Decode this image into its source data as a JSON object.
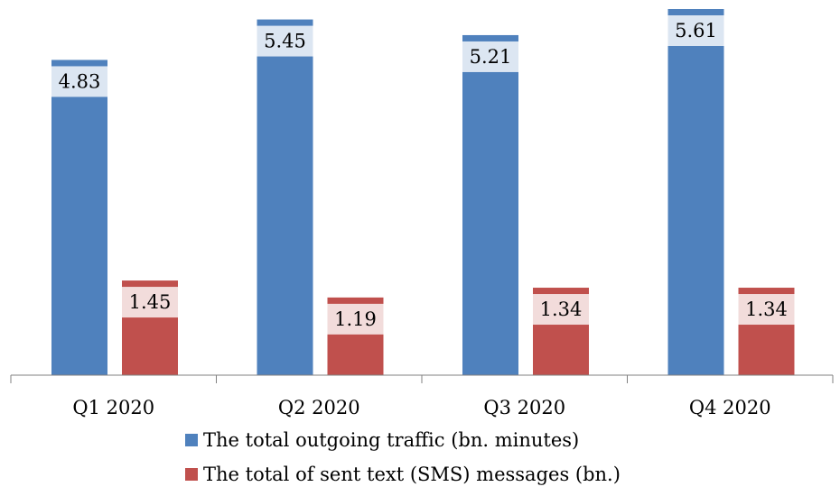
{
  "chart_data": {
    "type": "bar",
    "categories": [
      "Q1 2020",
      "Q2 2020",
      "Q3 2020",
      "Q4 2020"
    ],
    "series": [
      {
        "name": "The total outgoing traffic (bn. minutes)",
        "values": [
          4.83,
          5.45,
          5.21,
          5.61
        ],
        "labels": [
          "4.83",
          "5.45",
          "5.21",
          "5.61"
        ],
        "color": "#4F81BD",
        "label_bg": "#DCE6F2"
      },
      {
        "name": "The total of sent text (SMS) messages (bn.)",
        "values": [
          1.45,
          1.19,
          1.34,
          1.34
        ],
        "labels": [
          "1.45",
          "1.19",
          "1.34",
          "1.34"
        ],
        "color": "#C0504D",
        "label_bg": "#F2DCDB"
      }
    ],
    "ylim": [
      0,
      5.61
    ],
    "grid": false,
    "legend_position": "bottom"
  }
}
